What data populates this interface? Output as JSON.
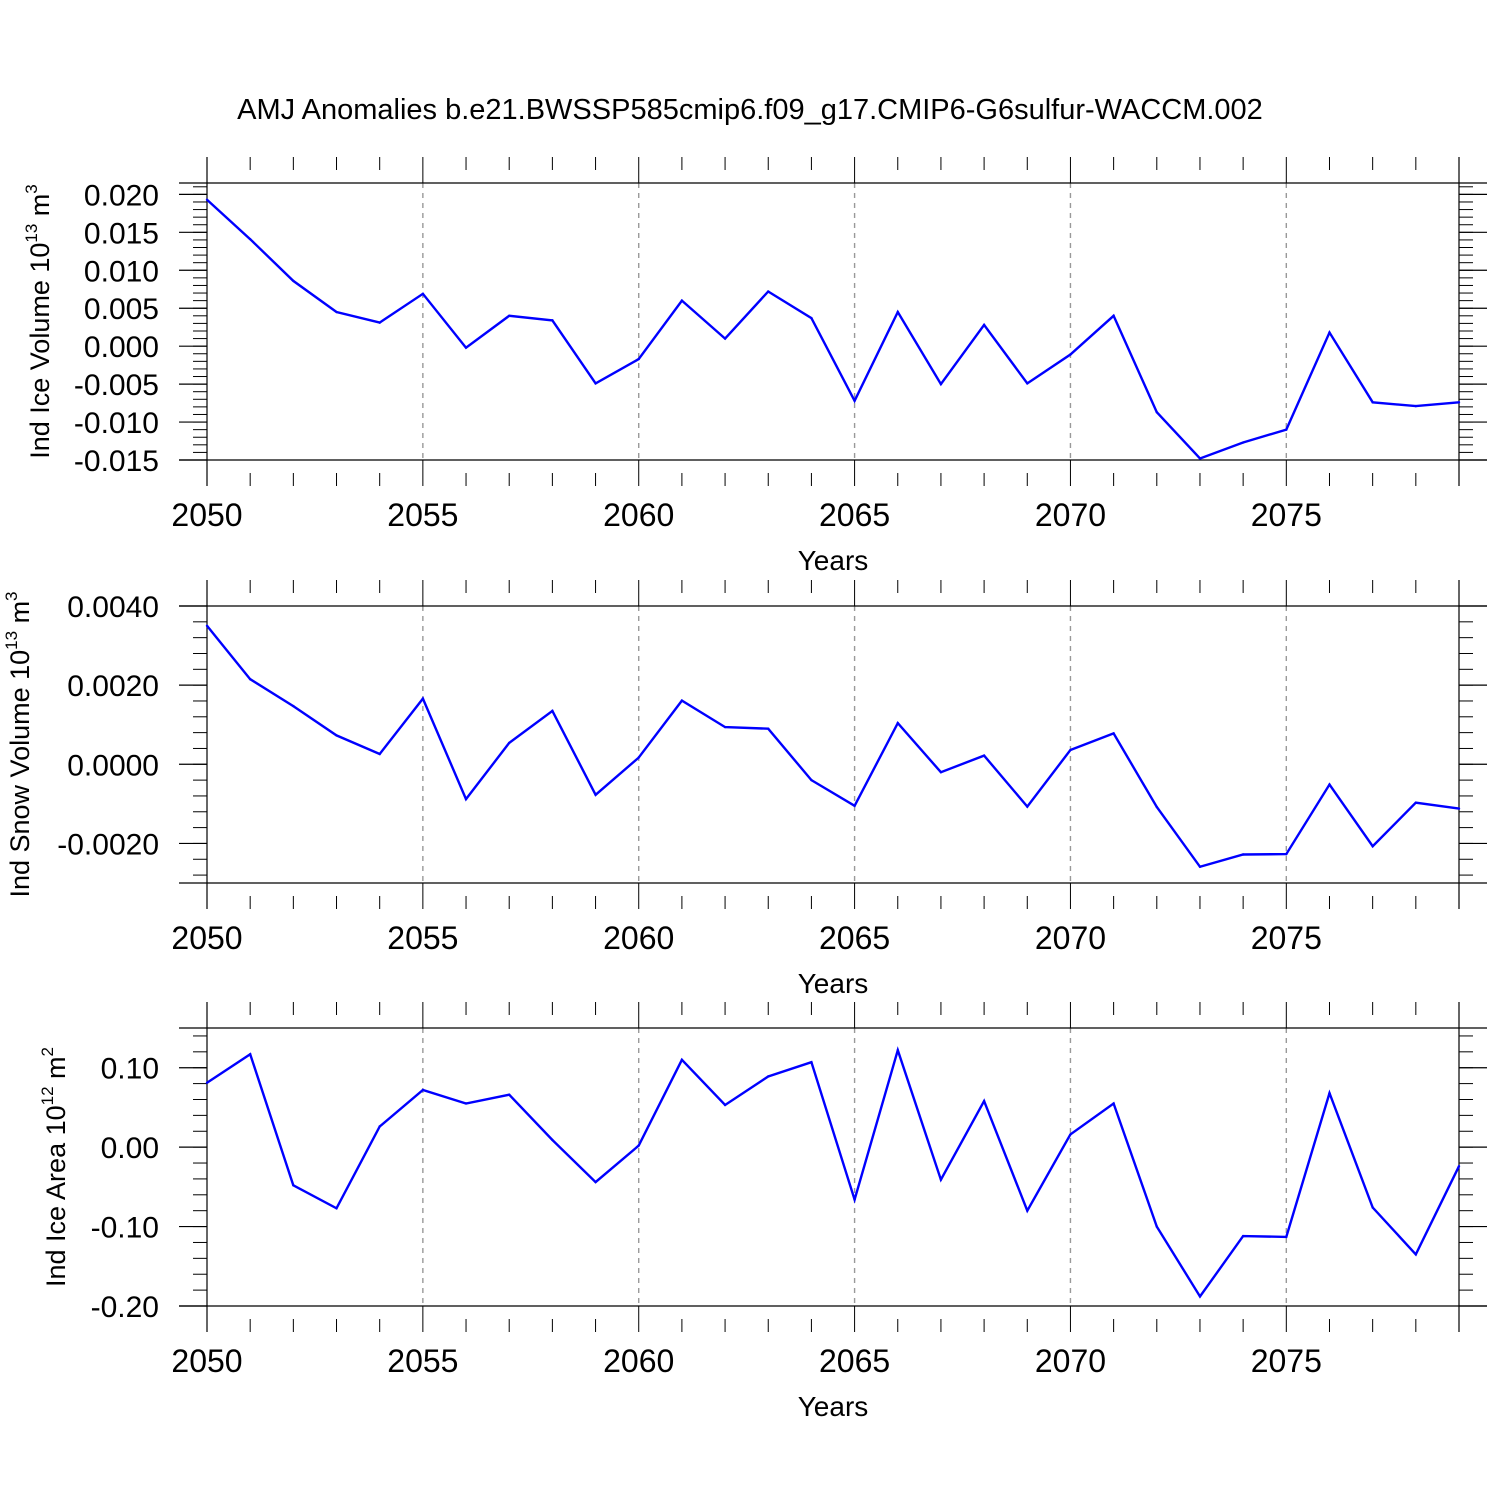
{
  "title": "AMJ Anomalies b.e21.BWSSP585cmip6.f09_g17.CMIP6-G6sulfur-WACCM.002",
  "colors": {
    "line": "#0000ff",
    "axis": "#000000",
    "grid": "#999999"
  },
  "chart_data": [
    {
      "type": "line",
      "xlabel": "Years",
      "ylabel": {
        "text": "Ind Ice Volume 10",
        "sup": "13",
        "unit": " m",
        "unit_sup": "3"
      },
      "xlim": [
        2050,
        2079
      ],
      "ylim": [
        -0.015,
        0.0215
      ],
      "xticks": [
        2050,
        2055,
        2060,
        2065,
        2070,
        2075
      ],
      "xtick_labels": [
        "2050",
        "2055",
        "2060",
        "2065",
        "2070",
        "2075"
      ],
      "yticks": [
        0.02,
        0.015,
        0.01,
        0.005,
        0.0,
        -0.005,
        -0.01,
        -0.015
      ],
      "ytick_labels": [
        "0.020",
        "0.015",
        "0.010",
        "0.005",
        "0.000",
        "-0.005",
        "-0.010",
        "-0.015"
      ],
      "grid": "vertical-dashed",
      "x": [
        2050,
        2051,
        2052,
        2053,
        2054,
        2055,
        2056,
        2057,
        2058,
        2059,
        2060,
        2061,
        2062,
        2063,
        2064,
        2065,
        2066,
        2067,
        2068,
        2069,
        2070,
        2071,
        2072,
        2073,
        2074,
        2075,
        2076,
        2077,
        2078,
        2079
      ],
      "y": [
        0.0193,
        0.0141,
        0.0086,
        0.0045,
        0.0031,
        0.0069,
        -0.0002,
        0.004,
        0.0034,
        -0.0049,
        -0.0017,
        0.006,
        0.001,
        0.0072,
        0.0037,
        -0.0072,
        0.0045,
        -0.005,
        0.0028,
        -0.0049,
        -0.0011,
        0.004,
        -0.0087,
        -0.0148,
        -0.0127,
        -0.011,
        0.0018,
        -0.0074,
        -0.0079,
        -0.0074
      ]
    },
    {
      "type": "line",
      "xlabel": "Years",
      "ylabel": {
        "text": "Ind Snow Volume 10",
        "sup": "13",
        "unit": " m",
        "unit_sup": "3"
      },
      "xlim": [
        2050,
        2079
      ],
      "ylim": [
        -0.003,
        0.004
      ],
      "xticks": [
        2050,
        2055,
        2060,
        2065,
        2070,
        2075
      ],
      "xtick_labels": [
        "2050",
        "2055",
        "2060",
        "2065",
        "2070",
        "2075"
      ],
      "yticks": [
        0.004,
        0.002,
        0.0,
        -0.002
      ],
      "ytick_labels": [
        "0.0040",
        "0.0020",
        "0.0000",
        "-0.0020"
      ],
      "grid": "vertical-dashed",
      "x": [
        2050,
        2051,
        2052,
        2053,
        2054,
        2055,
        2056,
        2057,
        2058,
        2059,
        2060,
        2061,
        2062,
        2063,
        2064,
        2065,
        2066,
        2067,
        2068,
        2069,
        2070,
        2071,
        2072,
        2073,
        2074,
        2075,
        2076,
        2077,
        2078,
        2079
      ],
      "y": [
        0.0035,
        0.00215,
        0.00147,
        0.00073,
        0.00026,
        0.00166,
        -0.00088,
        0.00054,
        0.00135,
        -0.00077,
        0.00017,
        0.00161,
        0.00094,
        0.0009,
        -0.0004,
        -0.00105,
        0.00104,
        -0.0002,
        0.00022,
        -0.00107,
        0.00036,
        0.00078,
        -0.00108,
        -0.00259,
        -0.00228,
        -0.00227,
        -0.00051,
        -0.00207,
        -0.00097,
        -0.00112
      ]
    },
    {
      "type": "line",
      "xlabel": "Years",
      "ylabel": {
        "text": "Ind Ice Area 10",
        "sup": "12",
        "unit": " m",
        "unit_sup": "2"
      },
      "xlim": [
        2050,
        2079
      ],
      "ylim": [
        -0.2,
        0.15
      ],
      "xticks": [
        2050,
        2055,
        2060,
        2065,
        2070,
        2075
      ],
      "xtick_labels": [
        "2050",
        "2055",
        "2060",
        "2065",
        "2070",
        "2075"
      ],
      "yticks": [
        0.1,
        0.0,
        -0.1,
        -0.2
      ],
      "ytick_labels": [
        "0.10",
        "0.00",
        "-0.10",
        "-0.20"
      ],
      "grid": "vertical-dashed",
      "x": [
        2050,
        2051,
        2052,
        2053,
        2054,
        2055,
        2056,
        2057,
        2058,
        2059,
        2060,
        2061,
        2062,
        2063,
        2064,
        2065,
        2066,
        2067,
        2068,
        2069,
        2070,
        2071,
        2072,
        2073,
        2074,
        2075,
        2076,
        2077,
        2078,
        2079
      ],
      "y": [
        0.081,
        0.117,
        -0.048,
        -0.077,
        0.026,
        0.072,
        0.055,
        0.066,
        0.009,
        -0.044,
        0.002,
        0.11,
        0.053,
        0.089,
        0.107,
        -0.066,
        0.122,
        -0.041,
        0.058,
        -0.08,
        0.016,
        0.055,
        -0.1,
        -0.188,
        -0.112,
        -0.113,
        0.068,
        -0.076,
        -0.135,
        -0.024
      ]
    }
  ]
}
